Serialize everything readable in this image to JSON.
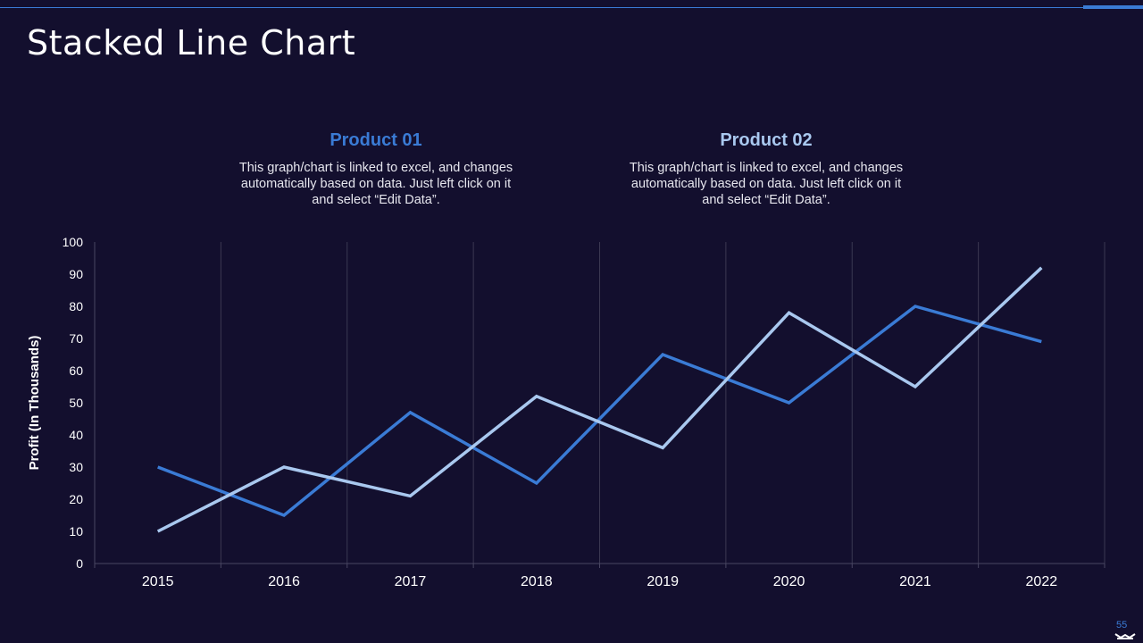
{
  "slide": {
    "title": "Stacked Line Chart",
    "page_number": "55"
  },
  "legend": [
    {
      "title": "Product 01",
      "description": "This graph/chart is linked to excel, and changes automatically based on data.  Just left click on it and select “Edit Data”.",
      "color": "#3a7bd5"
    },
    {
      "title": "Product 02",
      "description": "This graph/chart is linked to excel, and changes automatically based on data.  Just left click on it and select “Edit Data”.",
      "color": "#a9c8ef"
    }
  ],
  "chart_data": {
    "type": "line",
    "title": "",
    "xlabel": "",
    "ylabel": "Profit (In Thousands)",
    "categories": [
      "2015",
      "2016",
      "2017",
      "2018",
      "2019",
      "2020",
      "2021",
      "2022"
    ],
    "ylim": [
      0,
      100
    ],
    "yticks": [
      0,
      10,
      20,
      30,
      40,
      50,
      60,
      70,
      80,
      90,
      100
    ],
    "grid": "vertical",
    "series": [
      {
        "name": "Product 01",
        "color": "#3a7bd5",
        "values": [
          30,
          15,
          47,
          25,
          65,
          50,
          80,
          69
        ]
      },
      {
        "name": "Product 02",
        "color": "#a9c8ef",
        "values": [
          10,
          30,
          21,
          52,
          36,
          78,
          55,
          92
        ]
      }
    ]
  }
}
